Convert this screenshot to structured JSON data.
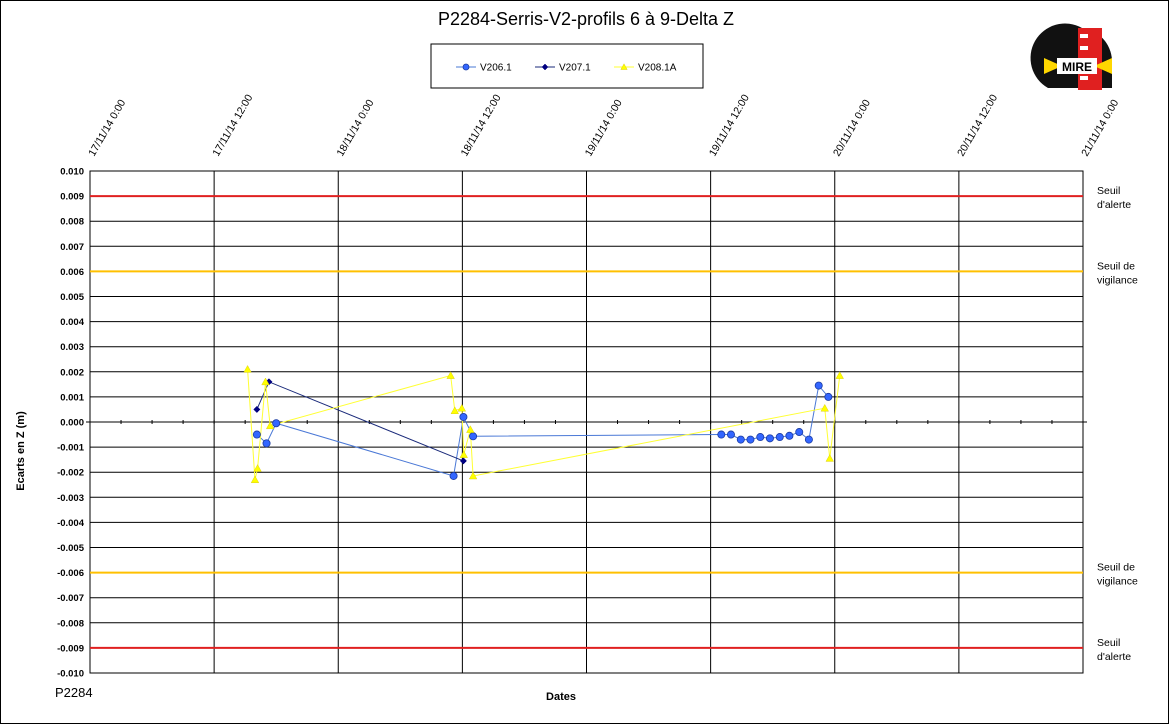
{
  "chart_data": {
    "type": "scatter",
    "title": "P2284-Serris-V2-profils  6 à 9-Delta  Z",
    "xlabel": "Dates",
    "ylabel": "Ecarts en Z (m)",
    "footer_label": "P2284",
    "logo_text": "MIRE",
    "ylim": [
      -0.01,
      0.01
    ],
    "y_ticks": [
      "0.010",
      "0.009",
      "0.008",
      "0.007",
      "0.006",
      "0.005",
      "0.004",
      "0.003",
      "0.002",
      "0.001",
      "0.000",
      "-0.001",
      "-0.002",
      "-0.003",
      "-0.004",
      "-0.005",
      "-0.006",
      "-0.007",
      "-0.008",
      "-0.009",
      "-0.010"
    ],
    "x_ticks": [
      "17/11/14 0:00",
      "17/11/14 12:00",
      "18/11/14 0:00",
      "18/11/14 12:00",
      "19/11/14 0:00",
      "19/11/14 12:00",
      "20/11/14 0:00",
      "20/11/14 12:00",
      "21/11/14 0:00"
    ],
    "xlim_days": [
      0,
      4
    ],
    "grid": true,
    "legend_position": "top-center",
    "thresholds": [
      {
        "label_lines": [
          "Seuil",
          "d'alerte"
        ],
        "value": 0.009,
        "color": "#e02020"
      },
      {
        "label_lines": [
          "Seuil de",
          "vigilance"
        ],
        "value": 0.006,
        "color": "#ffc000"
      },
      {
        "label_lines": [
          "Seuil de",
          "vigilance"
        ],
        "value": -0.006,
        "color": "#ffc000"
      },
      {
        "label_lines": [
          "Seuil",
          "d'alerte"
        ],
        "value": -0.009,
        "color": "#e02020"
      }
    ],
    "series": [
      {
        "name": "V206.1",
        "color": "#3366ff",
        "line_color": "#4a78d6",
        "marker": "circle",
        "points": [
          [
            "17/11/14 16:08",
            -0.0005
          ],
          [
            "17/11/14 17:04",
            -0.00085
          ],
          [
            "17/11/14 18:00",
            -5e-05
          ],
          [
            "18/11/14 11:09",
            -0.00215
          ],
          [
            "18/11/14 12:06",
            0.0002
          ],
          [
            "18/11/14 13:02",
            -0.00057
          ],
          [
            "19/11/14 13:02",
            -0.0005
          ],
          [
            "19/11/14 13:58",
            -0.0005
          ],
          [
            "19/11/14 14:55",
            -0.0007
          ],
          [
            "19/11/14 15:51",
            -0.0007
          ],
          [
            "19/11/14 16:48",
            -0.0006
          ],
          [
            "19/11/14 17:44",
            -0.00065
          ],
          [
            "19/11/14 18:41",
            -0.0006
          ],
          [
            "19/11/14 19:37",
            -0.00055
          ],
          [
            "19/11/14 20:34",
            -0.0004
          ],
          [
            "19/11/14 21:30",
            -0.0007
          ],
          [
            "19/11/14 22:27",
            0.00145
          ],
          [
            "19/11/14 23:23",
            0.001
          ]
        ]
      },
      {
        "name": "V207.1",
        "color": "#000080",
        "line_color": "#1a2a7a",
        "marker": "diamond",
        "points": [
          [
            "17/11/14 16:08",
            0.0005
          ],
          [
            "17/11/14 17:18",
            0.0016
          ],
          [
            "18/11/14 12:06",
            -0.00155
          ]
        ]
      },
      {
        "name": "V208.1A",
        "color": "#ffff00",
        "line_color": "#ffff33",
        "marker": "triangle",
        "points": [
          [
            "17/11/14 15:14",
            0.0021
          ],
          [
            "17/11/14 15:57",
            -0.0023
          ],
          [
            "17/11/14 16:12",
            -0.00185
          ],
          [
            "17/11/14 16:58",
            0.0016
          ],
          [
            "17/11/14 17:25",
            -0.00015
          ],
          [
            "18/11/14 10:52",
            0.00185
          ],
          [
            "18/11/14 11:16",
            0.00045
          ],
          [
            "18/11/14 11:57",
            0.00055
          ],
          [
            "18/11/14 12:08",
            -0.0013
          ],
          [
            "18/11/14 12:46",
            -0.0003
          ],
          [
            "18/11/14 13:02",
            -0.00215
          ],
          [
            "19/11/14 23:02",
            0.00055
          ],
          [
            "19/11/14 23:31",
            -0.00145
          ],
          [
            "20/11/14 0:29",
            0.00185
          ]
        ]
      }
    ]
  }
}
